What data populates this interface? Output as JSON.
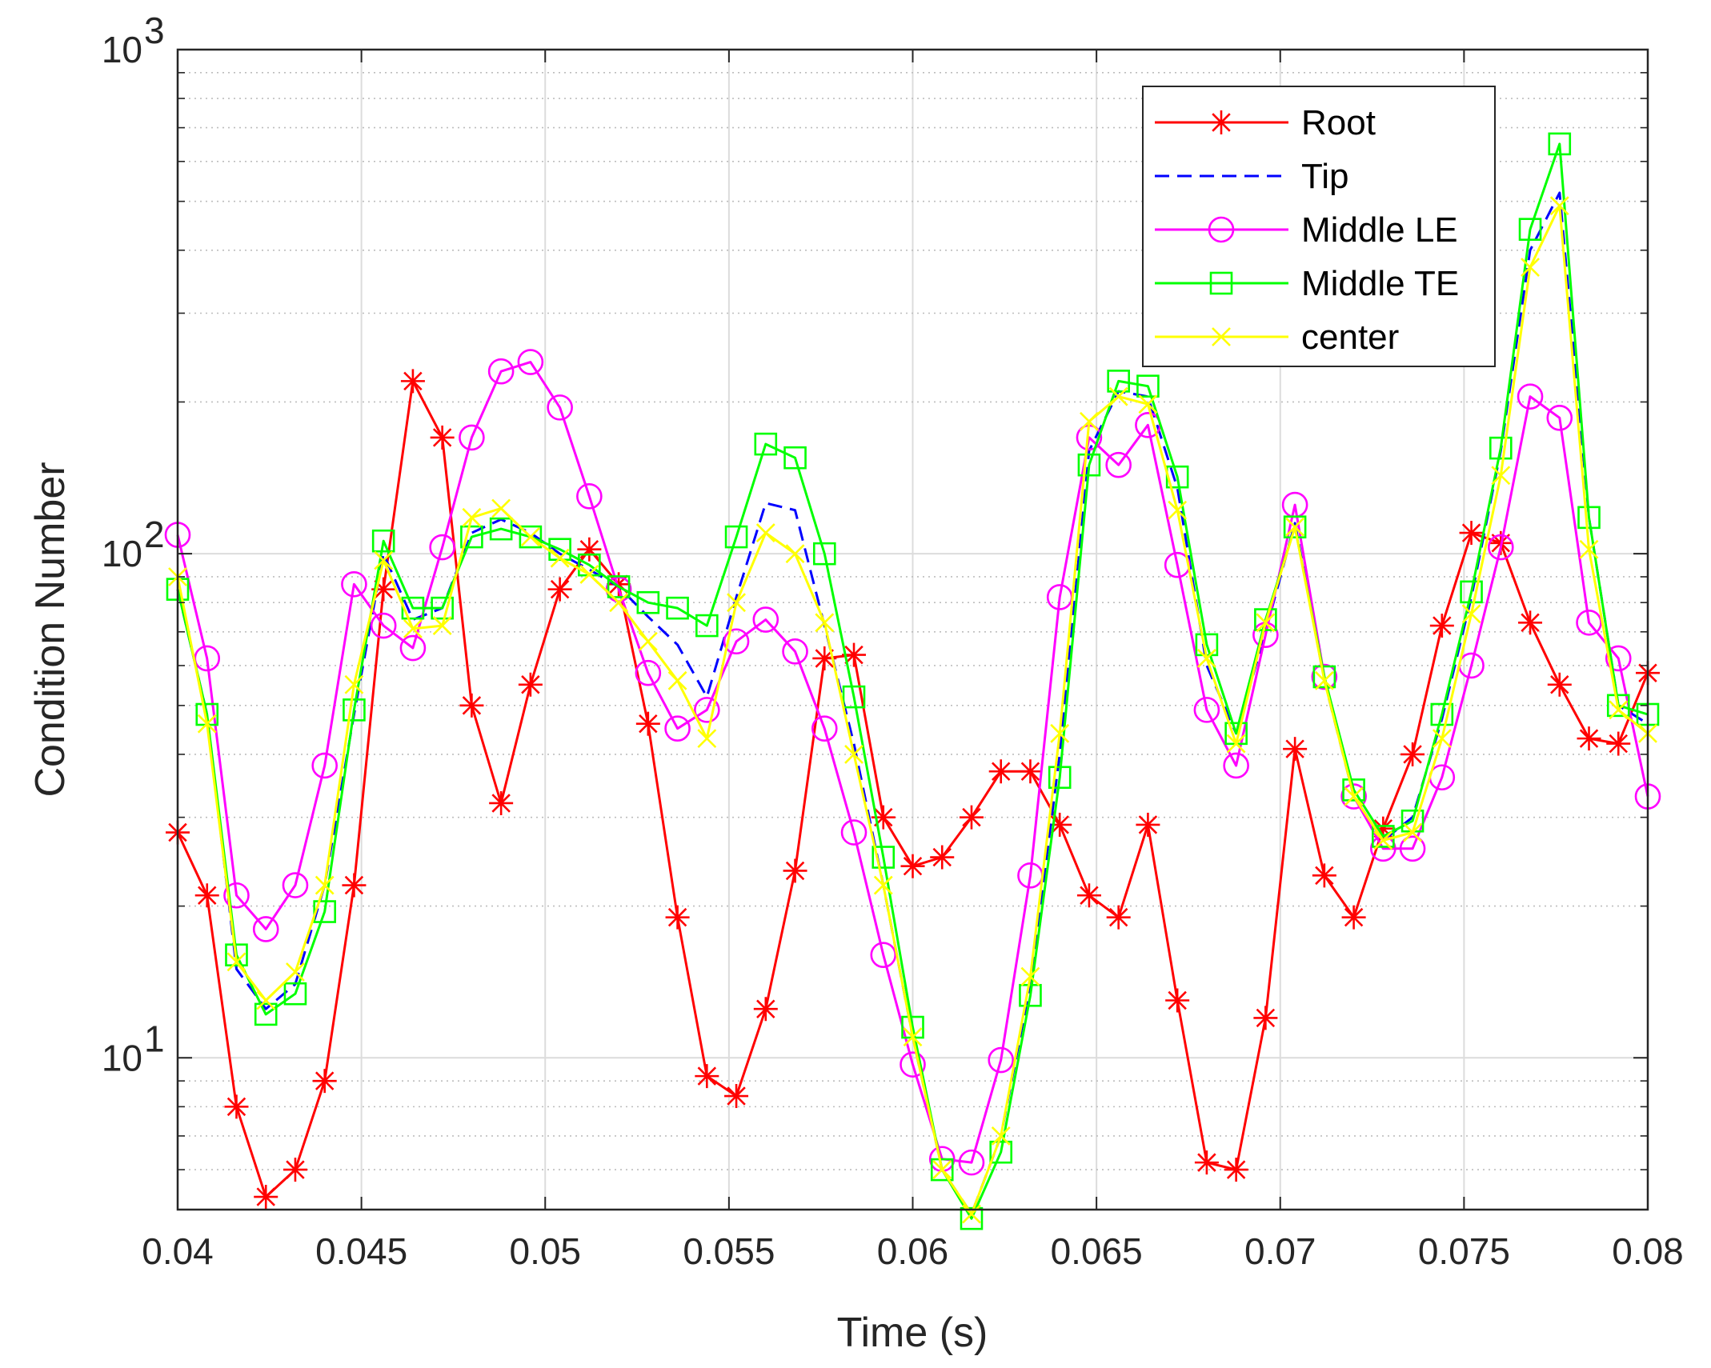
{
  "chart_data": {
    "type": "line",
    "xlabel": "Time (s)",
    "ylabel": "Condition Number",
    "xlim": [
      0.04,
      0.08
    ],
    "ylim": [
      5,
      1000
    ],
    "yscale": "log",
    "grid": true,
    "legend_position": "top-right",
    "x_ticks": [
      {
        "value": 0.04,
        "label": "0.04"
      },
      {
        "value": 0.045,
        "label": "0.045"
      },
      {
        "value": 0.05,
        "label": "0.05"
      },
      {
        "value": 0.055,
        "label": "0.055"
      },
      {
        "value": 0.06,
        "label": "0.06"
      },
      {
        "value": 0.065,
        "label": "0.065"
      },
      {
        "value": 0.07,
        "label": "0.07"
      },
      {
        "value": 0.075,
        "label": "0.075"
      },
      {
        "value": 0.08,
        "label": "0.08"
      }
    ],
    "y_ticks": [
      {
        "value": 10,
        "base": "10",
        "exp": "1"
      },
      {
        "value": 100,
        "base": "10",
        "exp": "2"
      },
      {
        "value": 1000,
        "base": "10",
        "exp": "3"
      }
    ],
    "x": [
      0.04,
      0.0408,
      0.0416,
      0.0424,
      0.0432,
      0.044,
      0.0448,
      0.0456,
      0.0464,
      0.0472,
      0.048,
      0.0488,
      0.0496,
      0.0504,
      0.0512,
      0.052,
      0.0528,
      0.0536,
      0.0544,
      0.0552,
      0.056,
      0.0568,
      0.0576,
      0.0584,
      0.0592,
      0.06,
      0.0608,
      0.0616,
      0.0624,
      0.0632,
      0.064,
      0.0648,
      0.0656,
      0.0664,
      0.0672,
      0.068,
      0.0688,
      0.0696,
      0.0704,
      0.0712,
      0.072,
      0.0728,
      0.0736,
      0.0744,
      0.0752,
      0.076,
      0.0768,
      0.0776,
      0.0784,
      0.0792,
      0.08
    ],
    "series": [
      {
        "name": "Root",
        "color": "#ff0000",
        "marker": "asterisk",
        "dash": "solid",
        "values": [
          28,
          21,
          8,
          5.3,
          6,
          9,
          22,
          85,
          220,
          170,
          50,
          32,
          55,
          85,
          102,
          87,
          46,
          19,
          9.2,
          8.4,
          12.5,
          23.5,
          62,
          63,
          30,
          24,
          25,
          30,
          37,
          37,
          29,
          21,
          19,
          29,
          13,
          6.2,
          6,
          12,
          41,
          23,
          19,
          28.5,
          40,
          72,
          110,
          105,
          73,
          55,
          43,
          42,
          58
        ]
      },
      {
        "name": "Tip",
        "color": "#0000ff",
        "marker": "none",
        "dash": "dashed",
        "values": [
          85,
          48,
          15,
          12.5,
          14,
          22,
          48,
          100,
          74,
          78,
          110,
          117,
          110,
          100,
          93,
          86,
          75,
          66,
          52,
          82,
          126,
          122,
          72,
          42,
          22,
          11,
          6,
          4.9,
          7,
          14,
          40,
          160,
          210,
          205,
          135,
          60,
          44,
          70,
          115,
          56,
          33,
          27,
          30,
          47,
          82,
          160,
          400,
          520,
          118,
          50,
          46
        ]
      },
      {
        "name": "Middle LE",
        "color": "#ff00ff",
        "marker": "circle",
        "dash": "solid",
        "values": [
          109,
          62,
          21,
          18,
          22,
          38,
          87,
          72,
          65,
          103,
          170,
          230,
          240,
          195,
          130,
          85,
          58,
          45,
          49,
          67,
          74,
          64,
          45,
          28,
          16,
          9.7,
          6.3,
          6.2,
          9.9,
          23,
          82,
          170,
          150,
          180,
          95,
          49,
          38,
          69,
          125,
          57,
          33,
          26,
          26,
          36,
          60,
          103,
          205,
          186,
          73,
          62,
          33
        ]
      },
      {
        "name": "Middle TE",
        "color": "#00ff00",
        "marker": "square",
        "dash": "solid",
        "values": [
          85,
          48,
          16,
          12.2,
          13.4,
          19.5,
          49,
          106,
          78,
          78,
          108,
          112,
          108,
          102,
          95,
          86,
          80,
          78,
          72,
          108,
          165,
          155,
          100,
          52,
          25,
          11.5,
          6,
          4.8,
          6.5,
          13.3,
          36,
          150,
          220,
          215,
          142,
          66,
          44,
          74,
          113,
          57,
          34,
          27.5,
          29.5,
          48,
          84,
          162,
          440,
          650,
          118,
          50,
          48
        ]
      },
      {
        "name": "center",
        "color": "#ffff00",
        "marker": "x",
        "dash": "solid",
        "values": [
          90,
          46,
          15.5,
          13,
          14.8,
          22,
          55,
          97,
          71,
          72,
          118,
          123,
          108,
          98,
          91,
          80,
          67,
          56,
          43,
          80,
          110,
          100,
          73,
          40,
          22,
          11,
          6,
          4.9,
          7,
          14.5,
          44,
          183,
          205,
          198,
          122,
          62,
          42,
          73,
          113,
          56,
          33,
          27,
          28,
          43,
          76,
          143,
          370,
          490,
          102,
          49,
          44
        ]
      }
    ]
  }
}
